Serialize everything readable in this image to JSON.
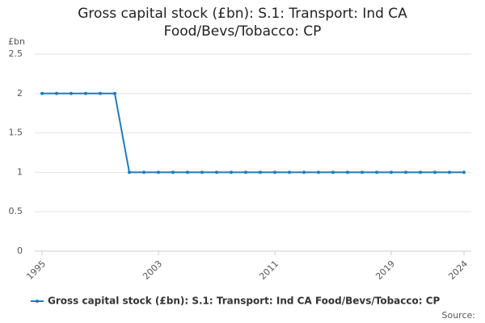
{
  "chart_data": {
    "type": "line",
    "title": "Gross capital stock (£bn): S.1: Transport: Ind CA Food/Bevs/Tobacco: CP",
    "y_label": "£bn",
    "source": "Source:",
    "x": [
      1995,
      1996,
      1997,
      1998,
      1999,
      2000,
      2001,
      2002,
      2003,
      2004,
      2005,
      2006,
      2007,
      2008,
      2009,
      2010,
      2011,
      2012,
      2013,
      2014,
      2015,
      2016,
      2017,
      2018,
      2019,
      2020,
      2021,
      2022,
      2023,
      2024
    ],
    "series": [
      {
        "name": "Gross capital stock (£bn): S.1: Transport: Ind CA Food/Bevs/Tobacco: CP",
        "color": "#1f7bbf",
        "values": [
          2,
          2,
          2,
          2,
          2,
          2,
          1,
          1,
          1,
          1,
          1,
          1,
          1,
          1,
          1,
          1,
          1,
          1,
          1,
          1,
          1,
          1,
          1,
          1,
          1,
          1,
          1,
          1,
          1,
          1
        ]
      }
    ],
    "xlim": [
      1995,
      2024
    ],
    "xticks": [
      1995,
      2003,
      2011,
      2019,
      2024
    ],
    "ylim": [
      0,
      2.5
    ],
    "yticks": [
      0,
      0.5,
      1,
      1.5,
      2,
      2.5
    ],
    "grid": true
  }
}
